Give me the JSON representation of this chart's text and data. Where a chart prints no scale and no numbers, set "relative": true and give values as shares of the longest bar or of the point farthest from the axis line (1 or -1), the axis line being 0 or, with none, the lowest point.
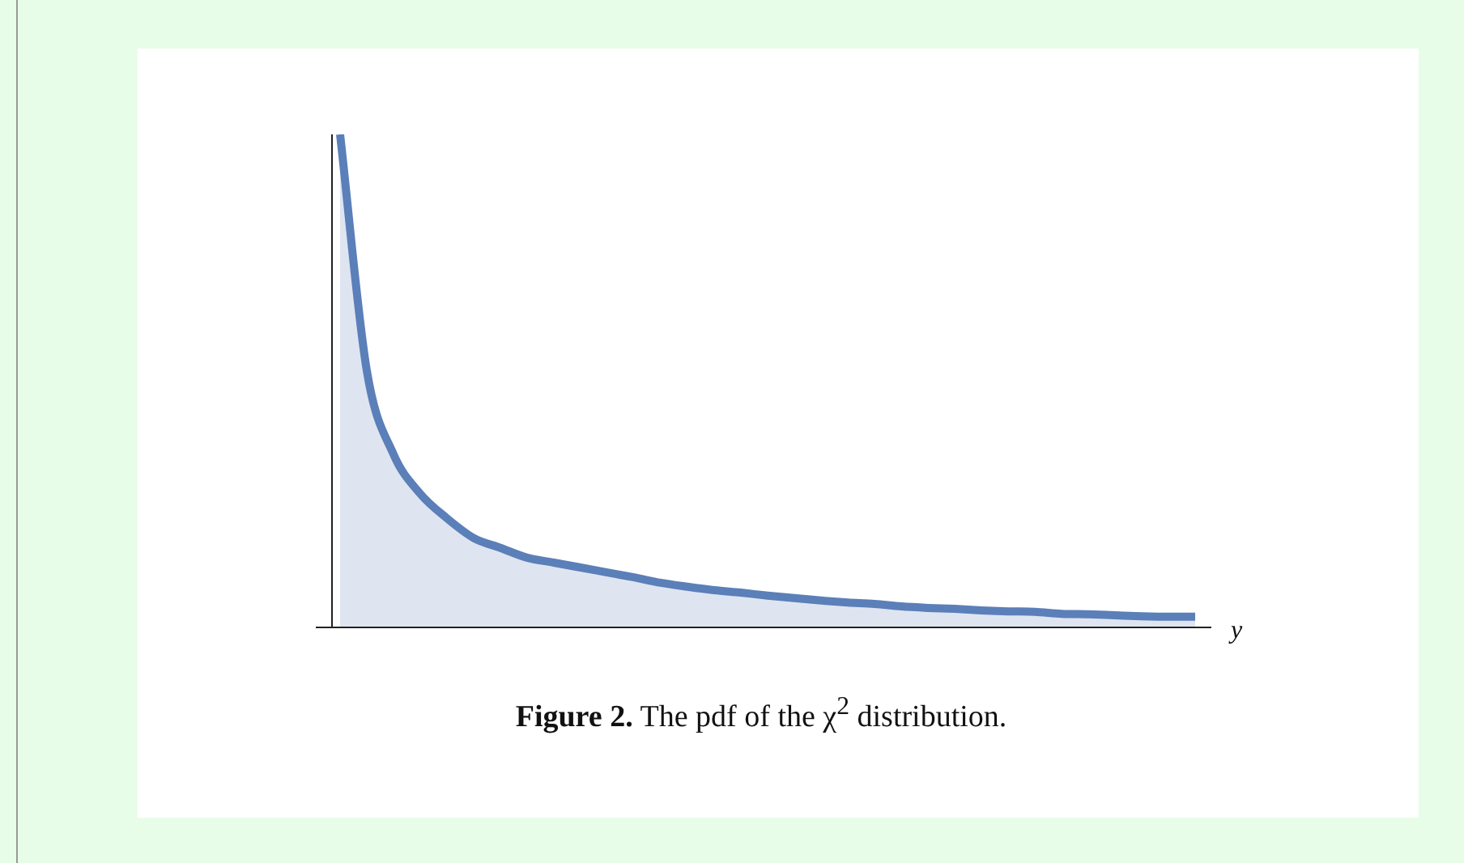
{
  "chart_data": {
    "type": "area",
    "title": "Figure 2. The pdf of the χ$^{2}$ distribution.",
    "xlabel": "y",
    "relative": true,
    "marker": "none",
    "categories": [
      null,
      null,
      null,
      null,
      null,
      null,
      null,
      null,
      null,
      null,
      null,
      null,
      null,
      null,
      null,
      null,
      null,
      null,
      null,
      null,
      null,
      null,
      null,
      null,
      null,
      null,
      null,
      null,
      null,
      null,
      null,
      null,
      null
    ],
    "series": [
      {
        "color": "#5b7fb8",
        "values": [
          1,
          0.52,
          0.35,
          0.27,
          0.22,
          0.18,
          0.16,
          0.14,
          0.13,
          0.12,
          0.11,
          0.1,
          0.089,
          0.081,
          0.074,
          0.069,
          0.063,
          0.058,
          0.053,
          0.049,
          0.046,
          0.041,
          0.038,
          0.036,
          0.033,
          0.031,
          0.03,
          0.026,
          0.025,
          0.023,
          0.021,
          0.02,
          0.02
        ]
      }
    ]
  }
}
